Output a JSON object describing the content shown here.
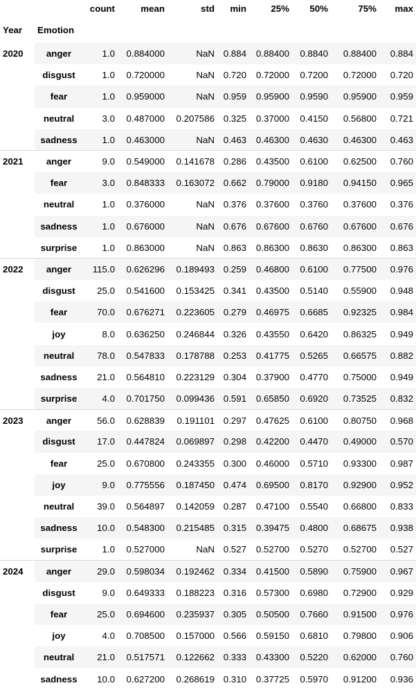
{
  "columns": [
    "count",
    "mean",
    "std",
    "min",
    "25%",
    "50%",
    "75%",
    "max"
  ],
  "index_names": [
    "Year",
    "Emotion"
  ],
  "groups": [
    {
      "year": "2020",
      "rows": [
        {
          "emotion": "anger",
          "values": [
            "1.0",
            "0.884000",
            "NaN",
            "0.884",
            "0.88400",
            "0.8840",
            "0.88400",
            "0.884"
          ]
        },
        {
          "emotion": "disgust",
          "values": [
            "1.0",
            "0.720000",
            "NaN",
            "0.720",
            "0.72000",
            "0.7200",
            "0.72000",
            "0.720"
          ]
        },
        {
          "emotion": "fear",
          "values": [
            "1.0",
            "0.959000",
            "NaN",
            "0.959",
            "0.95900",
            "0.9590",
            "0.95900",
            "0.959"
          ]
        },
        {
          "emotion": "neutral",
          "values": [
            "3.0",
            "0.487000",
            "0.207586",
            "0.325",
            "0.37000",
            "0.4150",
            "0.56800",
            "0.721"
          ]
        },
        {
          "emotion": "sadness",
          "values": [
            "1.0",
            "0.463000",
            "NaN",
            "0.463",
            "0.46300",
            "0.4630",
            "0.46300",
            "0.463"
          ]
        }
      ]
    },
    {
      "year": "2021",
      "rows": [
        {
          "emotion": "anger",
          "values": [
            "9.0",
            "0.549000",
            "0.141678",
            "0.286",
            "0.43500",
            "0.6100",
            "0.62500",
            "0.760"
          ]
        },
        {
          "emotion": "fear",
          "values": [
            "3.0",
            "0.848333",
            "0.163072",
            "0.662",
            "0.79000",
            "0.9180",
            "0.94150",
            "0.965"
          ]
        },
        {
          "emotion": "neutral",
          "values": [
            "1.0",
            "0.376000",
            "NaN",
            "0.376",
            "0.37600",
            "0.3760",
            "0.37600",
            "0.376"
          ]
        },
        {
          "emotion": "sadness",
          "values": [
            "1.0",
            "0.676000",
            "NaN",
            "0.676",
            "0.67600",
            "0.6760",
            "0.67600",
            "0.676"
          ]
        },
        {
          "emotion": "surprise",
          "values": [
            "1.0",
            "0.863000",
            "NaN",
            "0.863",
            "0.86300",
            "0.8630",
            "0.86300",
            "0.863"
          ]
        }
      ]
    },
    {
      "year": "2022",
      "rows": [
        {
          "emotion": "anger",
          "values": [
            "115.0",
            "0.626296",
            "0.189493",
            "0.259",
            "0.46800",
            "0.6100",
            "0.77500",
            "0.976"
          ]
        },
        {
          "emotion": "disgust",
          "values": [
            "25.0",
            "0.541600",
            "0.153425",
            "0.341",
            "0.43500",
            "0.5140",
            "0.55900",
            "0.948"
          ]
        },
        {
          "emotion": "fear",
          "values": [
            "70.0",
            "0.676271",
            "0.223605",
            "0.279",
            "0.46975",
            "0.6685",
            "0.92325",
            "0.984"
          ]
        },
        {
          "emotion": "joy",
          "values": [
            "8.0",
            "0.636250",
            "0.246844",
            "0.326",
            "0.43550",
            "0.6420",
            "0.86325",
            "0.949"
          ]
        },
        {
          "emotion": "neutral",
          "values": [
            "78.0",
            "0.547833",
            "0.178788",
            "0.253",
            "0.41775",
            "0.5265",
            "0.66575",
            "0.882"
          ]
        },
        {
          "emotion": "sadness",
          "values": [
            "21.0",
            "0.564810",
            "0.223129",
            "0.304",
            "0.37900",
            "0.4770",
            "0.75000",
            "0.949"
          ]
        },
        {
          "emotion": "surprise",
          "values": [
            "4.0",
            "0.701750",
            "0.099436",
            "0.591",
            "0.65850",
            "0.6920",
            "0.73525",
            "0.832"
          ]
        }
      ]
    },
    {
      "year": "2023",
      "rows": [
        {
          "emotion": "anger",
          "values": [
            "56.0",
            "0.628839",
            "0.191101",
            "0.297",
            "0.47625",
            "0.6100",
            "0.80750",
            "0.968"
          ]
        },
        {
          "emotion": "disgust",
          "values": [
            "17.0",
            "0.447824",
            "0.069897",
            "0.298",
            "0.42200",
            "0.4470",
            "0.49000",
            "0.570"
          ]
        },
        {
          "emotion": "fear",
          "values": [
            "25.0",
            "0.670800",
            "0.243355",
            "0.300",
            "0.46000",
            "0.5710",
            "0.93300",
            "0.987"
          ]
        },
        {
          "emotion": "joy",
          "values": [
            "9.0",
            "0.775556",
            "0.187450",
            "0.474",
            "0.69500",
            "0.8170",
            "0.92900",
            "0.952"
          ]
        },
        {
          "emotion": "neutral",
          "values": [
            "39.0",
            "0.564897",
            "0.142059",
            "0.287",
            "0.47100",
            "0.5540",
            "0.66800",
            "0.833"
          ]
        },
        {
          "emotion": "sadness",
          "values": [
            "10.0",
            "0.548300",
            "0.215485",
            "0.315",
            "0.39475",
            "0.4800",
            "0.68675",
            "0.938"
          ]
        },
        {
          "emotion": "surprise",
          "values": [
            "1.0",
            "0.527000",
            "NaN",
            "0.527",
            "0.52700",
            "0.5270",
            "0.52700",
            "0.527"
          ]
        }
      ]
    },
    {
      "year": "2024",
      "rows": [
        {
          "emotion": "anger",
          "values": [
            "29.0",
            "0.598034",
            "0.192462",
            "0.334",
            "0.41500",
            "0.5890",
            "0.75900",
            "0.967"
          ]
        },
        {
          "emotion": "disgust",
          "values": [
            "9.0",
            "0.649333",
            "0.188223",
            "0.316",
            "0.57300",
            "0.6980",
            "0.72900",
            "0.929"
          ]
        },
        {
          "emotion": "fear",
          "values": [
            "25.0",
            "0.694600",
            "0.235937",
            "0.305",
            "0.50500",
            "0.7660",
            "0.91500",
            "0.976"
          ]
        },
        {
          "emotion": "joy",
          "values": [
            "4.0",
            "0.708500",
            "0.157000",
            "0.566",
            "0.59150",
            "0.6810",
            "0.79800",
            "0.906"
          ]
        },
        {
          "emotion": "neutral",
          "values": [
            "21.0",
            "0.517571",
            "0.122662",
            "0.333",
            "0.43300",
            "0.5220",
            "0.62000",
            "0.760"
          ]
        },
        {
          "emotion": "sadness",
          "values": [
            "10.0",
            "0.627200",
            "0.268619",
            "0.310",
            "0.37725",
            "0.5970",
            "0.91200",
            "0.936"
          ]
        }
      ]
    }
  ]
}
